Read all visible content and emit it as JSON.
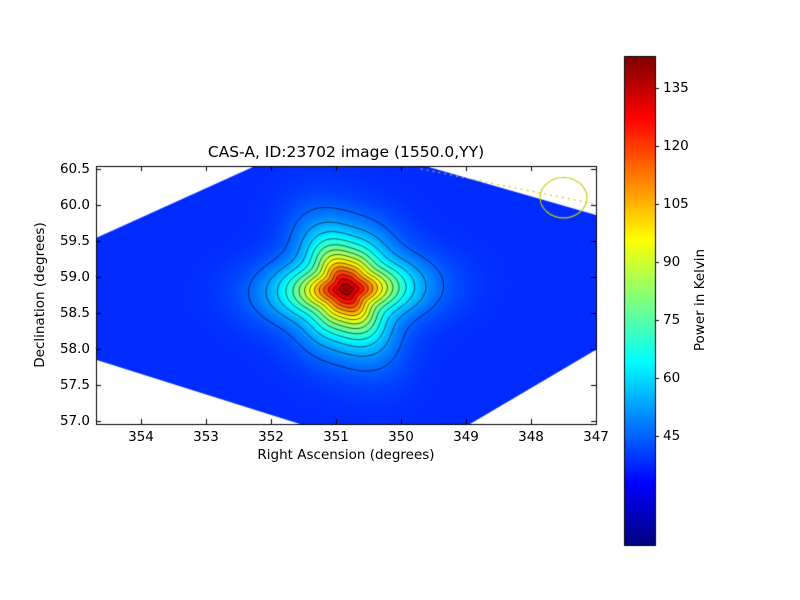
{
  "chart_data": {
    "type": "heatmap",
    "title": "CAS-A, ID:23702 image (1550.0,YY)",
    "xlabel": "Right Ascension (degrees)",
    "ylabel": "Declination (degrees)",
    "x_axis": {
      "left_value": 354.7,
      "right_value": 347.0,
      "direction": "decreasing"
    },
    "y_axis": {
      "bottom_value": 56.96,
      "top_value": 60.54
    },
    "x_tick_labels": [
      "354",
      "353",
      "352",
      "351",
      "350",
      "349",
      "348",
      "347"
    ],
    "x_tick_values": [
      354,
      353,
      352,
      351,
      350,
      349,
      348,
      347
    ],
    "y_tick_labels": [
      "57.0",
      "57.5",
      "58.0",
      "58.5",
      "59.0",
      "59.5",
      "60.0",
      "60.5"
    ],
    "y_tick_values": [
      57.0,
      57.5,
      58.0,
      58.5,
      59.0,
      59.5,
      60.0,
      60.5
    ],
    "colormap": "jet",
    "contour_color": "#000000",
    "contour_levels": [
      45,
      52,
      59,
      66,
      73,
      80,
      87,
      94,
      101,
      108,
      115,
      122,
      129,
      136
    ],
    "colorbar": {
      "label": "Power in Kelvin",
      "tick_labels": [
        "135",
        "120",
        "105",
        "90",
        "75",
        "60",
        "45"
      ],
      "tick_values": [
        135,
        120,
        105,
        90,
        75,
        60,
        45
      ],
      "vmin": 16.8,
      "vmax": 143.3
    },
    "source_model": {
      "name": "CAS-A",
      "ra_center": 350.85,
      "dec_center": 58.83,
      "base_k": 38,
      "amplitude_k": 103,
      "peak_k": 141,
      "half_width_ra_deg": 1.45,
      "half_width_dec_deg": 1.22,
      "falloff": 3.2,
      "profile_power": 1.5,
      "shape_waviness": [
        0.1,
        0.6,
        0.05,
        0.0,
        0.04,
        -0.8
      ]
    },
    "coverage_polygon_radec": [
      [
        354.7,
        59.54
      ],
      [
        352.25,
        60.54
      ],
      [
        349.63,
        60.54
      ],
      [
        347.0,
        59.86
      ],
      [
        347.0,
        57.99
      ],
      [
        348.94,
        56.96
      ],
      [
        351.56,
        56.96
      ],
      [
        354.7,
        57.85
      ]
    ],
    "annotations": {
      "color": "#c8c800",
      "dotted_line_radec": [
        [
          349.7,
          60.5
        ],
        [
          347.0,
          60.01
        ]
      ],
      "circle": {
        "ra": 347.5,
        "dec": 60.1,
        "r_ra": 0.36,
        "r_dec": 0.28
      }
    }
  }
}
